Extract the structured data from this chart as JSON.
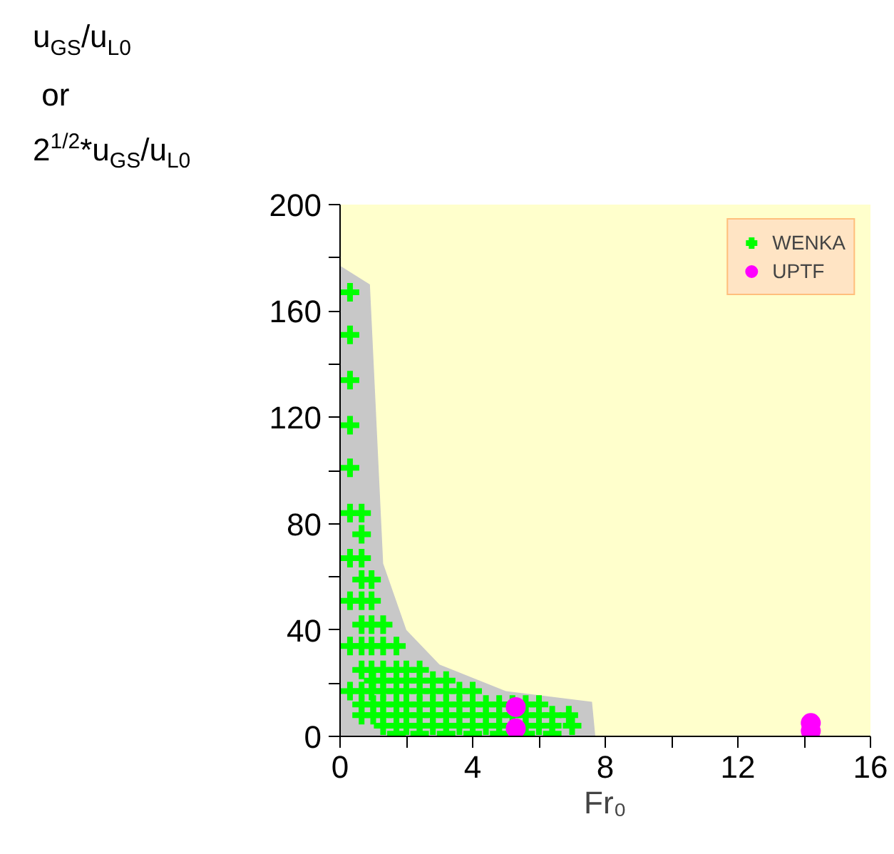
{
  "chart_data": {
    "type": "scatter",
    "xlabel": "Fr₀",
    "ylabel": "u$_{GS}$/u$_{L0}$\n or\n2$^{1/2}$*u$_{GS}$/u$_{L0}$",
    "xlim": [
      0,
      16
    ],
    "xticks": [
      0,
      {
        "value": 2,
        "label": null
      },
      4,
      {
        "value": 6,
        "label": null
      },
      8,
      {
        "value": 10,
        "label": null
      },
      12,
      {
        "value": 14,
        "label": null
      },
      16
    ],
    "ylim": [
      0,
      200
    ],
    "yticks": [
      0,
      {
        "value": 20,
        "label": null
      },
      40,
      {
        "value": 60,
        "label": null
      },
      80,
      {
        "value": 100,
        "label": null
      },
      120,
      {
        "value": 140,
        "label": null
      },
      160,
      {
        "value": 180,
        "label": null
      },
      200
    ],
    "grid": false,
    "legend": "top right",
    "series": [
      {
        "type": "area",
        "color": "#c8c8c8",
        "x": [
          0,
          0.9,
          1.3,
          2,
          3,
          5,
          7.6,
          7.7
        ],
        "values": [
          177,
          170,
          65,
          40,
          27,
          17,
          13,
          0
        ]
      },
      {
        "name": "WENKA",
        "color": "#00ff00",
        "marker": "cross",
        "x": [
          0.3,
          0.3,
          0.3,
          0.3,
          0.3,
          0.3,
          0.65,
          0.65,
          0.3,
          0.65,
          0.65,
          0.95,
          0.3,
          0.65,
          0.95,
          0.65,
          0.95,
          1.3,
          0.3,
          0.65,
          0.95,
          1.3,
          1.7,
          0.65,
          0.95,
          1.3,
          1.7,
          2.0,
          2.4,
          1.0,
          1.3,
          1.7,
          2.0,
          2.4,
          2.8,
          3.2,
          0.3,
          0.65,
          0.95,
          1.3,
          1.7,
          2.0,
          2.4,
          2.8,
          3.2,
          3.6,
          4.0,
          0.65,
          1.0,
          1.3,
          1.7,
          2.0,
          2.4,
          2.8,
          3.2,
          3.6,
          4.0,
          4.4,
          4.8,
          5.2,
          5.6,
          6.0,
          0.65,
          1.0,
          1.3,
          1.7,
          2.0,
          2.4,
          2.8,
          3.2,
          3.6,
          4.0,
          4.4,
          4.8,
          5.2,
          5.6,
          6.0,
          6.4,
          6.9,
          1.3,
          1.7,
          2.0,
          2.4,
          2.8,
          3.2,
          3.6,
          4.0,
          4.4,
          4.8,
          5.2,
          5.6,
          6.0,
          6.4,
          7.0,
          1.7,
          2.4,
          3.2,
          4.0,
          4.8,
          5.6,
          6.4
        ],
        "values": [
          167,
          151,
          134,
          117,
          101,
          84,
          84,
          76,
          67,
          67,
          59,
          59,
          51,
          51,
          51,
          42,
          42,
          42,
          34,
          34,
          34,
          34,
          34,
          25,
          25,
          25,
          25,
          25,
          25,
          21,
          21,
          21,
          21,
          21,
          21,
          21,
          17,
          17,
          17,
          17,
          17,
          17,
          17,
          17,
          17,
          17,
          17,
          12,
          12,
          12,
          12,
          12,
          12,
          12,
          12,
          12,
          12,
          12,
          12,
          12,
          12,
          12,
          8,
          8,
          8,
          8,
          8,
          8,
          8,
          8,
          8,
          8,
          8,
          8,
          8,
          8,
          8,
          8,
          8,
          4,
          4,
          4,
          4,
          4,
          4,
          4,
          4,
          4,
          4,
          4,
          4,
          4,
          4,
          4,
          1,
          1,
          1,
          1,
          1,
          1,
          1
        ]
      },
      {
        "name": "UPTF",
        "color": "#ff00ff",
        "marker": "circle",
        "x": [
          5.3,
          5.3,
          14.2,
          14.2
        ],
        "values": [
          11,
          3,
          5,
          2
        ]
      }
    ]
  }
}
